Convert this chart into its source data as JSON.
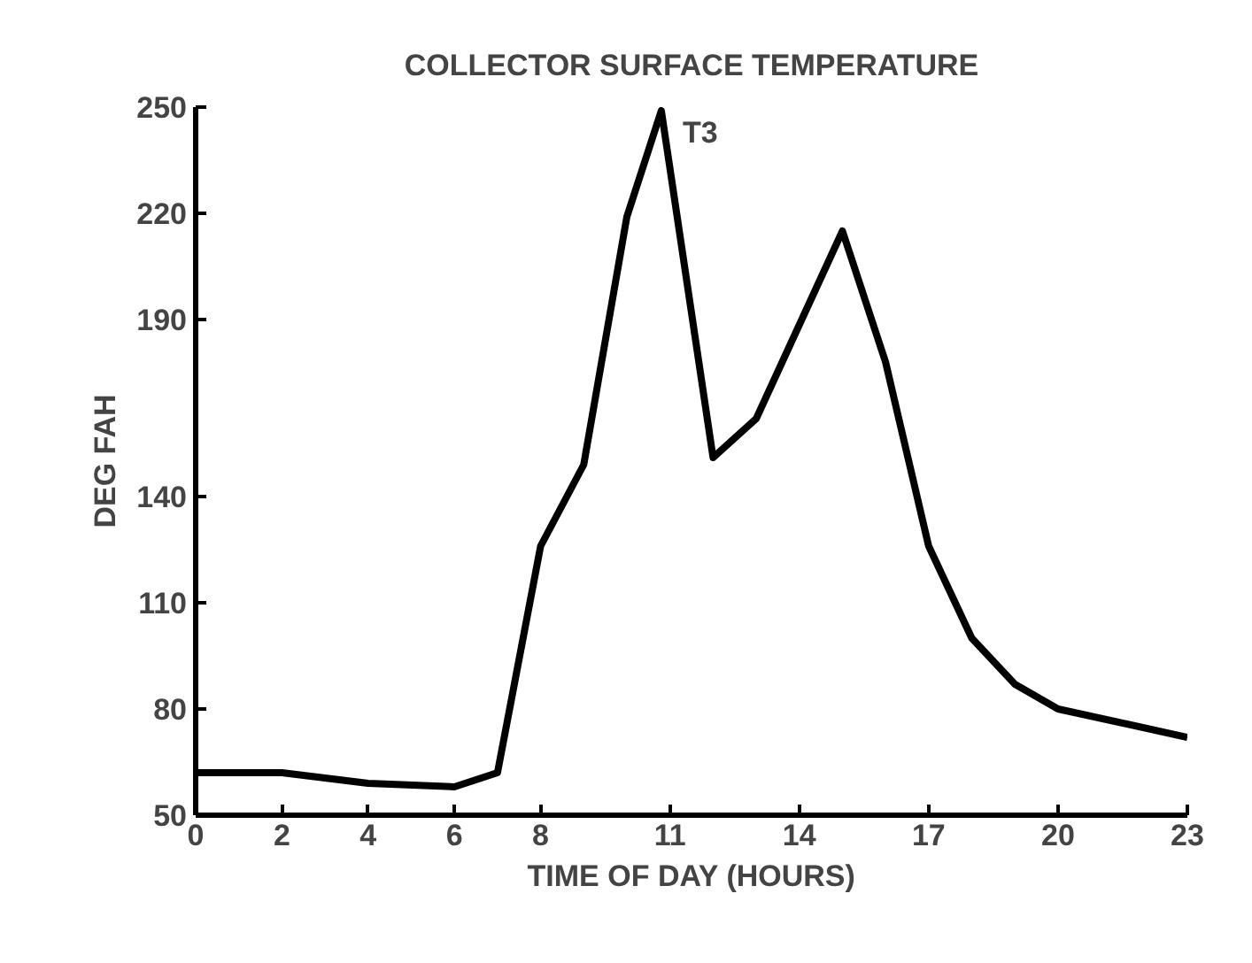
{
  "chart_data": {
    "type": "line",
    "title": "COLLECTOR SURFACE TEMPERATURE",
    "xlabel": "TIME OF DAY (HOURS)",
    "ylabel": "DEG FAH",
    "annotations": [
      {
        "text": "T3",
        "x": 10.8,
        "y": 249
      }
    ],
    "x": [
      0,
      2,
      4,
      6,
      7,
      8,
      9,
      10,
      10.8,
      12,
      13,
      15,
      16,
      17,
      18,
      19,
      20,
      23
    ],
    "series": [
      {
        "color": "#000000",
        "values": [
          62,
          62,
          59,
          58,
          62,
          126,
          149,
          219,
          249,
          151,
          162,
          215,
          178,
          126,
          100,
          87,
          80,
          72
        ]
      }
    ],
    "xlim": [
      0,
      23
    ],
    "xticks": [
      0,
      2,
      4,
      6,
      8,
      11,
      14,
      17,
      20,
      23
    ],
    "ylim": [
      50,
      250
    ],
    "yticks": [
      50,
      80,
      110,
      140,
      190,
      220,
      250
    ],
    "grid": false,
    "marker": "none",
    "line_style": "solid"
  }
}
